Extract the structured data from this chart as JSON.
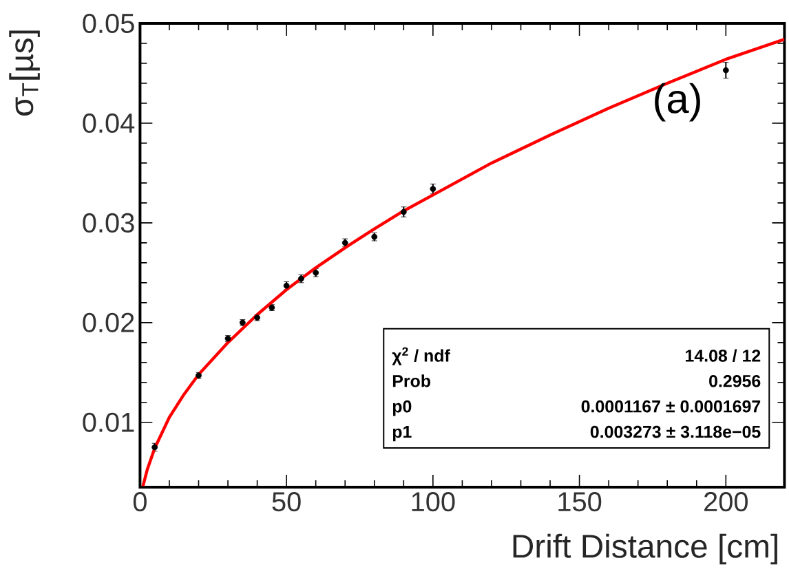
{
  "chart_data": {
    "type": "scatter",
    "xlabel": "Drift Distance [cm]",
    "ylabel": "σ$_{T}$[µs]",
    "series": [
      {
        "color": "#000000",
        "marker": "circle",
        "x": [
          5,
          20,
          30,
          35,
          40,
          45,
          50,
          55,
          60,
          70,
          80,
          90,
          100,
          200
        ],
        "values": [
          0.0075,
          0.0147,
          0.0184,
          0.02,
          0.0205,
          0.0215,
          0.0237,
          0.0244,
          0.025,
          0.028,
          0.0286,
          0.0311,
          0.0334,
          0.0453
        ],
        "errors": [
          0.0004,
          0.0003,
          0.0003,
          0.0003,
          0.0003,
          0.0003,
          0.0004,
          0.0004,
          0.0004,
          0.0004,
          0.0004,
          0.0005,
          0.0005,
          0.0008
        ]
      },
      {
        "type": "line",
        "color": "#ff0000",
        "marker": "none",
        "line_style": "solid",
        "x": [
          1,
          2.5,
          5,
          10,
          15,
          20,
          30,
          40,
          50,
          60,
          70,
          80,
          90,
          100,
          120,
          140,
          160,
          180,
          200,
          220
        ],
        "values": [
          0.0036,
          0.0053,
          0.0074,
          0.0105,
          0.0128,
          0.0148,
          0.018,
          0.0208,
          0.0233,
          0.0255,
          0.0275,
          0.0294,
          0.0312,
          0.0328,
          0.036,
          0.0388,
          0.0415,
          0.044,
          0.0464,
          0.0484
        ]
      }
    ],
    "xlim": [
      0,
      220
    ],
    "ylim": [
      0.0035,
      0.05
    ],
    "xticks": [
      0,
      50,
      100,
      150,
      200
    ],
    "yticks": [
      0.01,
      0.02,
      0.03,
      0.04,
      0.05
    ],
    "grid": false,
    "annotations": [
      "(a)",
      "χ$^{2}$ / ndf",
      "14.08 / 12",
      "Prob",
      "0.2956",
      "p0",
      "0.0001167 ± 0.0001697",
      "p1",
      "0.003273 ± 3.118e−05"
    ]
  }
}
